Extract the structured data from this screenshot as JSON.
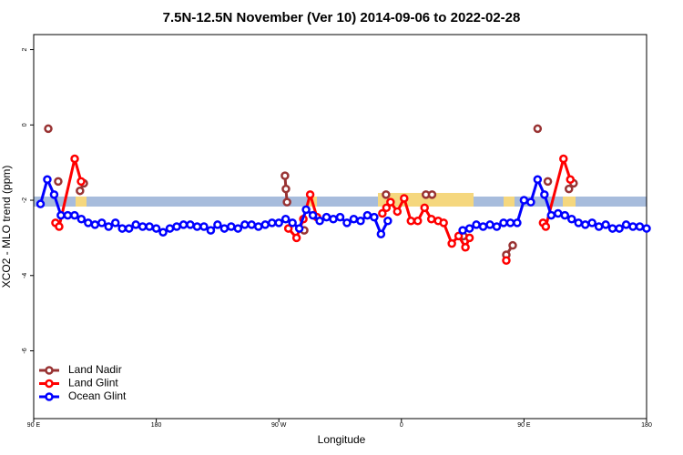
{
  "chart_data": {
    "type": "line",
    "title": "7.5N-12.5N November (Ver 10)   2014-09-06 to 2022-02-28",
    "x_label": "Longitude",
    "y_label": "XCO2 - MLO trend (ppm)",
    "xlim": [
      90,
      540
    ],
    "ylim": [
      -7.8,
      2.4
    ],
    "xticks": [
      {
        "value": 90,
        "label": "90 E"
      },
      180,
      {
        "value": 270,
        "label": "90 W"
      },
      {
        "value": 360,
        "label": "0"
      },
      {
        "value": 450,
        "label": "90 E"
      },
      {
        "value": 540,
        "label": "180"
      }
    ],
    "yticks": [
      -6,
      -4,
      -2,
      0,
      2
    ],
    "legend": "bottom-left",
    "series": [
      {
        "name": "Land Nadir",
        "color": "#993333",
        "x": [
          100.7,
          104,
          108,
          115,
          124,
          126.8,
          200,
          274.5,
          275.2,
          276,
          282,
          288.6,
          320,
          348.7,
          370,
          378,
          382.5,
          395,
          405.5,
          420,
          437,
          441.7,
          445,
          460,
          464,
          467.5,
          475,
          483,
          486.4
        ],
        "values": [
          -0.1,
          null,
          -1.5,
          null,
          -1.75,
          -1.55,
          null,
          -1.35,
          -1.7,
          -2.05,
          null,
          -2.8,
          null,
          -1.85,
          null,
          -1.85,
          -1.85,
          null,
          -2.95,
          null,
          -3.45,
          -3.2,
          null,
          -0.1,
          null,
          -1.5,
          null,
          -1.7,
          -1.55
        ]
      },
      {
        "name": "Land Glint",
        "color": "#ff0000",
        "x": [
          106,
          108.7,
          120.1,
          124.8,
          200,
          277,
          283,
          288,
          293,
          298,
          320,
          346,
          349,
          352,
          357,
          362,
          367,
          372,
          377,
          382,
          387,
          391,
          397,
          402,
          407,
          410,
          420,
          437,
          450,
          464,
          466,
          479,
          484
        ],
        "values": [
          -2.6,
          -2.7,
          -0.9,
          -1.5,
          null,
          -2.75,
          -3.0,
          -2.5,
          -1.85,
          -2.45,
          null,
          -2.35,
          -2.2,
          -2.05,
          -2.3,
          -1.95,
          -2.55,
          -2.55,
          -2.2,
          -2.5,
          -2.55,
          -2.6,
          -3.15,
          -2.95,
          -3.25,
          -3.0,
          null,
          -3.6,
          null,
          -2.6,
          -2.7,
          -0.9,
          -1.45
        ]
      },
      {
        "name": "Ocean Glint",
        "color": "#0000ff",
        "x": [
          95,
          100,
          105,
          110,
          115,
          120,
          125,
          130,
          135,
          140,
          145,
          150,
          155,
          160,
          165,
          170,
          175,
          180,
          185,
          190,
          195,
          200,
          205,
          210,
          215,
          220,
          225,
          230,
          235,
          240,
          245,
          250,
          255,
          260,
          265,
          270,
          275,
          280,
          285,
          290,
          295,
          300,
          305,
          310,
          315,
          320,
          325,
          330,
          335,
          340,
          345,
          350,
          355,
          360,
          365,
          370,
          375,
          380,
          385,
          390,
          395,
          400,
          405,
          410,
          415,
          420,
          425,
          430,
          435,
          440,
          445,
          450,
          455,
          460,
          465,
          470,
          475,
          480,
          485,
          490,
          495,
          500,
          505,
          510,
          515,
          520,
          525,
          530,
          535,
          540
        ],
        "values": [
          -2.1,
          -1.45,
          -1.85,
          -2.4,
          -2.4,
          -2.4,
          -2.5,
          -2.6,
          -2.65,
          -2.6,
          -2.7,
          -2.6,
          -2.75,
          -2.75,
          -2.65,
          -2.7,
          -2.7,
          -2.75,
          -2.85,
          -2.75,
          -2.7,
          -2.65,
          -2.65,
          -2.7,
          -2.7,
          -2.8,
          -2.65,
          -2.75,
          -2.7,
          -2.75,
          -2.65,
          -2.65,
          -2.7,
          -2.65,
          -2.6,
          -2.6,
          -2.5,
          -2.6,
          -2.75,
          -2.25,
          -2.4,
          -2.55,
          -2.45,
          -2.5,
          -2.45,
          -2.6,
          -2.5,
          -2.55,
          -2.4,
          -2.45,
          -2.9,
          -2.55,
          null,
          null,
          null,
          null,
          null,
          null,
          null,
          null,
          null,
          null,
          -2.8,
          -2.75,
          -2.65,
          -2.7,
          -2.65,
          -2.7,
          -2.6,
          -2.6,
          -2.6,
          -2.0,
          -2.05,
          -1.45,
          -1.85,
          -2.4,
          -2.35,
          -2.4,
          -2.5,
          -2.6,
          -2.65,
          -2.6,
          -2.7,
          -2.65,
          -2.75,
          -2.75,
          -2.65,
          -2.7,
          -2.7,
          -2.75
        ]
      }
    ]
  }
}
